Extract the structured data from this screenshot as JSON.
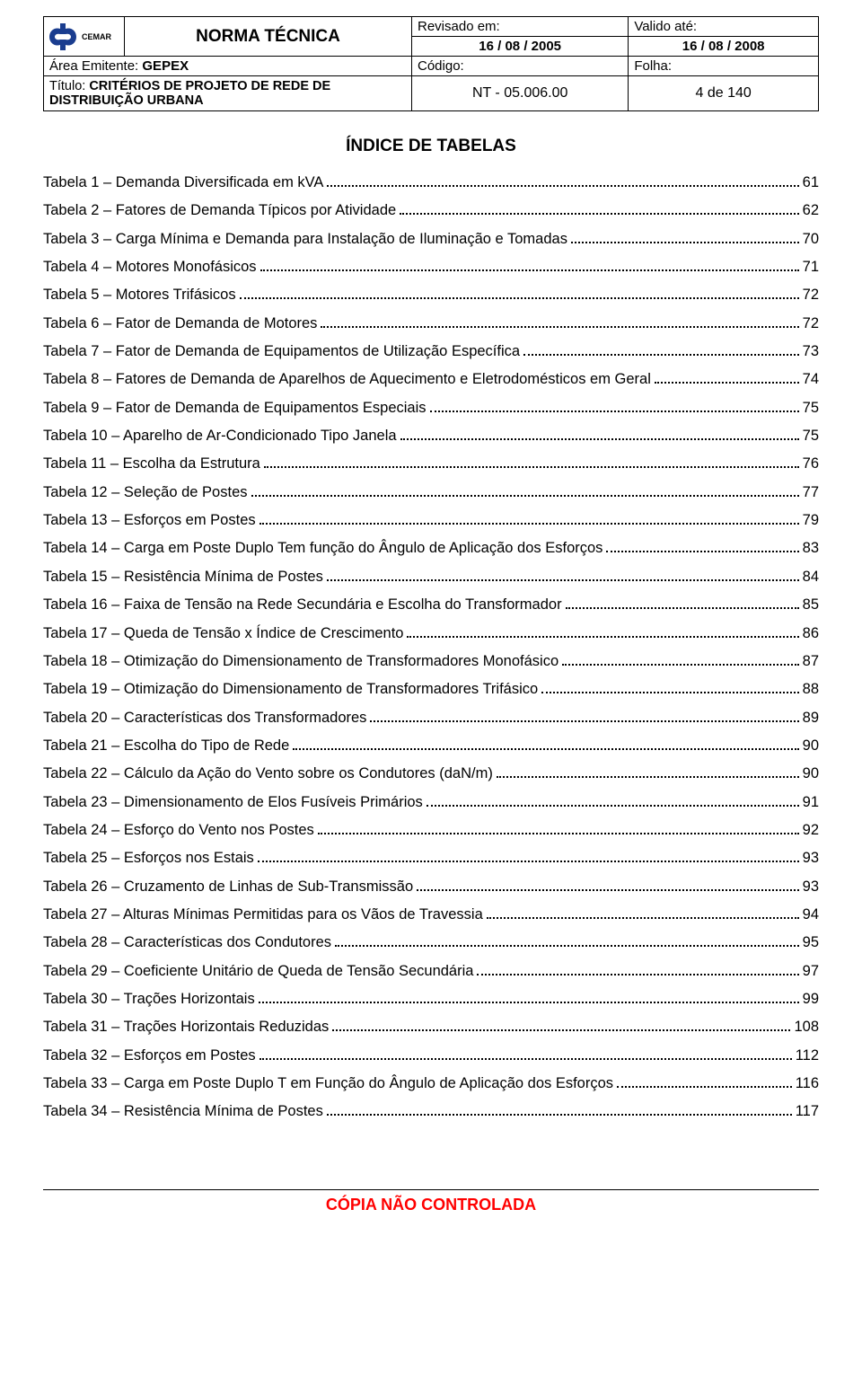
{
  "header": {
    "logo_text": "CEMAR",
    "norma_tecnica": "NORMA TÉCNICA",
    "revisado_label": "Revisado em:",
    "revisado_date": "16 / 08 / 2005",
    "valido_label": "Valido até:",
    "valido_date": "16 / 08 / 2008",
    "area_label": "Área Emitente: ",
    "area_value": "GEPEX",
    "codigo_label": "Código:",
    "folha_label": "Folha:",
    "titulo_label": "Título: ",
    "titulo_value": "CRITÉRIOS DE PROJETO DE REDE DE DISTRIBUIÇÃO URBANA",
    "nt": "NT - 05.006.00",
    "page": "4 de 140"
  },
  "section_title": "ÍNDICE DE TABELAS",
  "toc": [
    {
      "label": "Tabela 1 – Demanda Diversificada em kVA",
      "page": "61"
    },
    {
      "label": "Tabela 2 – Fatores de Demanda Típicos por Atividade",
      "page": "62"
    },
    {
      "label": "Tabela 3 – Carga Mínima e Demanda para Instalação de Iluminação e Tomadas",
      "page": "70"
    },
    {
      "label": "Tabela 4 – Motores Monofásicos",
      "page": "71"
    },
    {
      "label": "Tabela 5 – Motores Trifásicos",
      "page": "72"
    },
    {
      "label": "Tabela 6 – Fator de Demanda de Motores",
      "page": "72"
    },
    {
      "label": "Tabela 7 – Fator de Demanda de Equipamentos de Utilização Específica",
      "page": "73"
    },
    {
      "label": "Tabela 8 – Fatores de Demanda de Aparelhos de Aquecimento e Eletrodomésticos em Geral",
      "page": "74"
    },
    {
      "label": "Tabela 9 – Fator de Demanda de Equipamentos Especiais",
      "page": "75"
    },
    {
      "label": "Tabela 10 – Aparelho de Ar-Condicionado Tipo Janela",
      "page": "75"
    },
    {
      "label": "Tabela 11 – Escolha da Estrutura",
      "page": "76"
    },
    {
      "label": "Tabela 12 – Seleção de Postes",
      "page": "77"
    },
    {
      "label": "Tabela 13 – Esforços em Postes",
      "page": "79"
    },
    {
      "label": "Tabela 14 – Carga em Poste Duplo Tem função do Ângulo de Aplicação dos Esforços",
      "page": "83"
    },
    {
      "label": "Tabela 15 – Resistência Mínima de Postes",
      "page": "84"
    },
    {
      "label": "Tabela 16 – Faixa de Tensão na Rede Secundária e Escolha do Transformador",
      "page": "85"
    },
    {
      "label": "Tabela 17 – Queda de Tensão x Índice de Crescimento",
      "page": "86"
    },
    {
      "label": "Tabela 18 – Otimização do Dimensionamento de Transformadores Monofásico",
      "page": "87"
    },
    {
      "label": "Tabela 19 – Otimização do Dimensionamento de Transformadores Trifásico",
      "page": "88"
    },
    {
      "label": "Tabela 20 – Características dos Transformadores",
      "page": "89"
    },
    {
      "label": "Tabela 21 – Escolha do Tipo de Rede",
      "page": "90"
    },
    {
      "label": "Tabela 22 – Cálculo da Ação do Vento sobre os Condutores (daN/m)",
      "page": "90"
    },
    {
      "label": "Tabela 23 – Dimensionamento de Elos Fusíveis Primários",
      "page": "91"
    },
    {
      "label": "Tabela 24 – Esforço do Vento nos Postes",
      "page": "92"
    },
    {
      "label": "Tabela 25 – Esforços nos Estais",
      "page": "93"
    },
    {
      "label": "Tabela 26 – Cruzamento de Linhas de Sub-Transmissão",
      "page": "93"
    },
    {
      "label": "Tabela 27 – Alturas Mínimas Permitidas para os Vãos de Travessia",
      "page": "94"
    },
    {
      "label": "Tabela 28 – Características dos Condutores",
      "page": "95"
    },
    {
      "label": "Tabela 29 – Coeficiente Unitário de Queda de Tensão Secundária",
      "page": "97"
    },
    {
      "label": "Tabela 30 – Trações Horizontais",
      "page": "99"
    },
    {
      "label": "Tabela 31 – Trações Horizontais Reduzidas",
      "page": "108"
    },
    {
      "label": "Tabela 32 – Esforços em Postes",
      "page": "112"
    },
    {
      "label": "Tabela 33 – Carga em Poste Duplo T em Função do Ângulo de Aplicação dos Esforços",
      "page": "116"
    },
    {
      "label": "Tabela 34 – Resistência Mínima de Postes",
      "page": "117"
    }
  ],
  "footer": "CÓPIA NÃO CONTROLADA",
  "colors": {
    "logo_blue": "#1a3d8f",
    "footer_red": "#ff0000"
  }
}
